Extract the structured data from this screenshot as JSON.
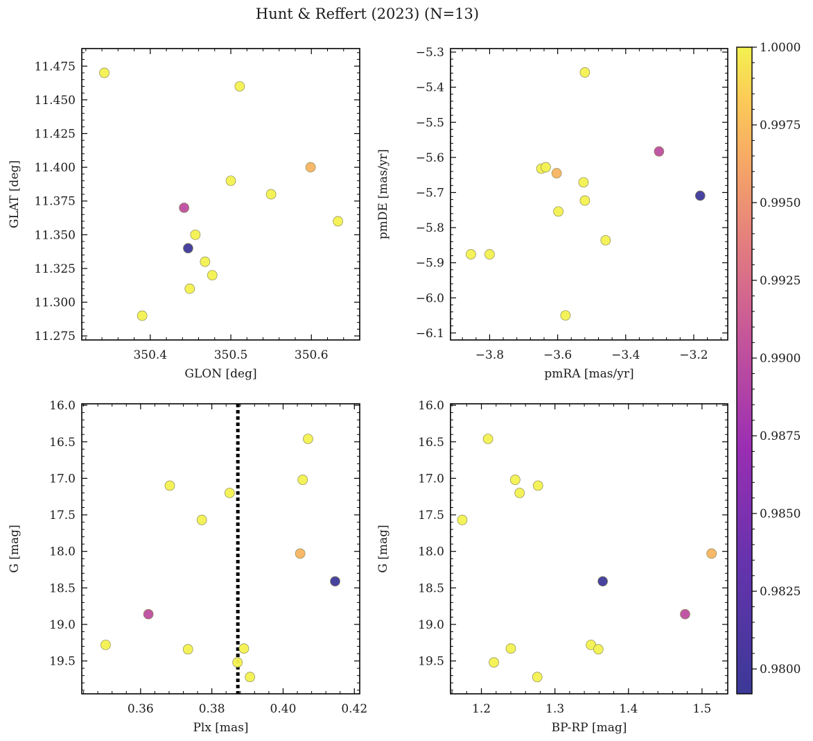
{
  "title": "Hunt & Reffert (2023) (N=13)",
  "colorbar": {
    "min": 0.9792,
    "max": 1.0,
    "ticks": [
      0.98,
      0.9825,
      0.985,
      0.9875,
      0.99,
      0.9925,
      0.995,
      0.9975,
      1.0
    ],
    "tick_labels": [
      "0.9800",
      "0.9825",
      "0.9850",
      "0.9875",
      "0.9900",
      "0.9925",
      "0.9950",
      "0.9975",
      "1.0000"
    ],
    "colormap": "plasma"
  },
  "chart_data": [
    {
      "id": "sky",
      "type": "scatter",
      "xlabel": "GLON [deg]",
      "ylabel": "GLAT [deg]",
      "xlim": [
        350.315,
        350.66
      ],
      "ylim": [
        11.272,
        11.488
      ],
      "yreverse": false,
      "xticks": [
        350.4,
        350.5,
        350.6
      ],
      "xtick_labels": [
        "350.4",
        "350.5",
        "350.6"
      ],
      "yticks": [
        11.275,
        11.3,
        11.325,
        11.35,
        11.375,
        11.4,
        11.425,
        11.45,
        11.475
      ],
      "ytick_labels": [
        "11.275",
        "11.300",
        "11.325",
        "11.350",
        "11.375",
        "11.400",
        "11.425",
        "11.450",
        "11.475"
      ],
      "points": [
        {
          "x": 350.343,
          "y": 11.47,
          "c": 1.0
        },
        {
          "x": 350.511,
          "y": 11.46,
          "c": 1.0
        },
        {
          "x": 350.599,
          "y": 11.4,
          "c": 0.997
        },
        {
          "x": 350.5,
          "y": 11.39,
          "c": 1.0
        },
        {
          "x": 350.55,
          "y": 11.38,
          "c": 1.0
        },
        {
          "x": 350.442,
          "y": 11.37,
          "c": 0.99
        },
        {
          "x": 350.633,
          "y": 11.36,
          "c": 1.0
        },
        {
          "x": 350.456,
          "y": 11.35,
          "c": 1.0
        },
        {
          "x": 350.447,
          "y": 11.34,
          "c": 0.9795
        },
        {
          "x": 350.468,
          "y": 11.33,
          "c": 1.0
        },
        {
          "x": 350.477,
          "y": 11.32,
          "c": 1.0
        },
        {
          "x": 350.449,
          "y": 11.31,
          "c": 1.0
        },
        {
          "x": 350.39,
          "y": 11.29,
          "c": 1.0
        }
      ]
    },
    {
      "id": "pm",
      "type": "scatter",
      "xlabel": "pmRA [mas/yr]",
      "ylabel": "pmDE [mas/yr]",
      "xlim": [
        -3.915,
        -3.1
      ],
      "ylim": [
        -6.12,
        -5.29
      ],
      "yreverse": false,
      "xticks": [
        -3.8,
        -3.6,
        -3.4,
        -3.2
      ],
      "xtick_labels": [
        "−3.8",
        "−3.6",
        "−3.4",
        "−3.2"
      ],
      "yticks": [
        -6.1,
        -6.0,
        -5.9,
        -5.8,
        -5.7,
        -5.6,
        -5.5,
        -5.4,
        -5.3
      ],
      "ytick_labels": [
        "−6.1",
        "−6.0",
        "−5.9",
        "−5.8",
        "−5.7",
        "−5.6",
        "−5.5",
        "−5.4",
        "−5.3"
      ],
      "points": [
        {
          "x": -3.52,
          "y": -5.358,
          "c": 1.0
        },
        {
          "x": -3.302,
          "y": -5.583,
          "c": 0.99
        },
        {
          "x": -3.648,
          "y": -5.632,
          "c": 1.0
        },
        {
          "x": -3.635,
          "y": -5.628,
          "c": 1.0
        },
        {
          "x": -3.603,
          "y": -5.645,
          "c": 0.997
        },
        {
          "x": -3.524,
          "y": -5.671,
          "c": 1.0
        },
        {
          "x": -3.181,
          "y": -5.709,
          "c": 0.9795
        },
        {
          "x": -3.52,
          "y": -5.723,
          "c": 1.0
        },
        {
          "x": -3.598,
          "y": -5.754,
          "c": 1.0
        },
        {
          "x": -3.459,
          "y": -5.836,
          "c": 1.0
        },
        {
          "x": -3.855,
          "y": -5.876,
          "c": 1.0
        },
        {
          "x": -3.8,
          "y": -5.876,
          "c": 1.0
        },
        {
          "x": -3.577,
          "y": -6.05,
          "c": 1.0
        }
      ]
    },
    {
      "id": "plx",
      "type": "scatter",
      "xlabel": "Plx [mas]",
      "ylabel": "G [mag]",
      "xlim": [
        0.3435,
        0.4215
      ],
      "ylim": [
        15.98,
        19.95
      ],
      "yreverse": true,
      "xticks": [
        0.36,
        0.38,
        0.4,
        0.42
      ],
      "xtick_labels": [
        "0.36",
        "0.38",
        "0.40",
        "0.42"
      ],
      "yticks": [
        16.0,
        16.5,
        17.0,
        17.5,
        18.0,
        18.5,
        19.0,
        19.5
      ],
      "ytick_labels": [
        "16.0",
        "16.5",
        "17.0",
        "17.5",
        "18.0",
        "18.5",
        "19.0",
        "19.5"
      ],
      "vline": 0.3873,
      "points": [
        {
          "x": 0.407,
          "y": 16.46,
          "c": 1.0
        },
        {
          "x": 0.4055,
          "y": 17.02,
          "c": 1.0
        },
        {
          "x": 0.3682,
          "y": 17.1,
          "c": 1.0
        },
        {
          "x": 0.385,
          "y": 17.2,
          "c": 1.0
        },
        {
          "x": 0.3772,
          "y": 17.57,
          "c": 1.0
        },
        {
          "x": 0.4048,
          "y": 18.03,
          "c": 0.997
        },
        {
          "x": 0.4146,
          "y": 18.41,
          "c": 0.9795
        },
        {
          "x": 0.3622,
          "y": 18.86,
          "c": 0.99
        },
        {
          "x": 0.3502,
          "y": 19.28,
          "c": 1.0
        },
        {
          "x": 0.3733,
          "y": 19.34,
          "c": 1.0
        },
        {
          "x": 0.389,
          "y": 19.33,
          "c": 1.0
        },
        {
          "x": 0.3872,
          "y": 19.52,
          "c": 1.0
        },
        {
          "x": 0.3907,
          "y": 19.72,
          "c": 1.0
        }
      ]
    },
    {
      "id": "cmd",
      "type": "scatter",
      "xlabel": "BP-RP [mag]",
      "ylabel": "G [mag]",
      "xlim": [
        1.158,
        1.535
      ],
      "ylim": [
        15.98,
        19.95
      ],
      "yreverse": true,
      "xticks": [
        1.2,
        1.3,
        1.4,
        1.5
      ],
      "xtick_labels": [
        "1.2",
        "1.3",
        "1.4",
        "1.5"
      ],
      "yticks": [
        16.0,
        16.5,
        17.0,
        17.5,
        18.0,
        18.5,
        19.0,
        19.5
      ],
      "ytick_labels": [
        "16.0",
        "16.5",
        "17.0",
        "17.5",
        "18.0",
        "18.5",
        "19.0",
        "19.5"
      ],
      "points": [
        {
          "x": 1.209,
          "y": 16.46,
          "c": 1.0
        },
        {
          "x": 1.246,
          "y": 17.02,
          "c": 1.0
        },
        {
          "x": 1.277,
          "y": 17.1,
          "c": 1.0
        },
        {
          "x": 1.252,
          "y": 17.2,
          "c": 1.0
        },
        {
          "x": 1.174,
          "y": 17.57,
          "c": 1.0
        },
        {
          "x": 1.513,
          "y": 18.03,
          "c": 0.997
        },
        {
          "x": 1.365,
          "y": 18.41,
          "c": 0.9795
        },
        {
          "x": 1.477,
          "y": 18.86,
          "c": 0.99
        },
        {
          "x": 1.349,
          "y": 19.28,
          "c": 1.0
        },
        {
          "x": 1.359,
          "y": 19.34,
          "c": 1.0
        },
        {
          "x": 1.24,
          "y": 19.33,
          "c": 1.0
        },
        {
          "x": 1.217,
          "y": 19.52,
          "c": 1.0
        },
        {
          "x": 1.276,
          "y": 19.72,
          "c": 1.0
        }
      ]
    }
  ]
}
